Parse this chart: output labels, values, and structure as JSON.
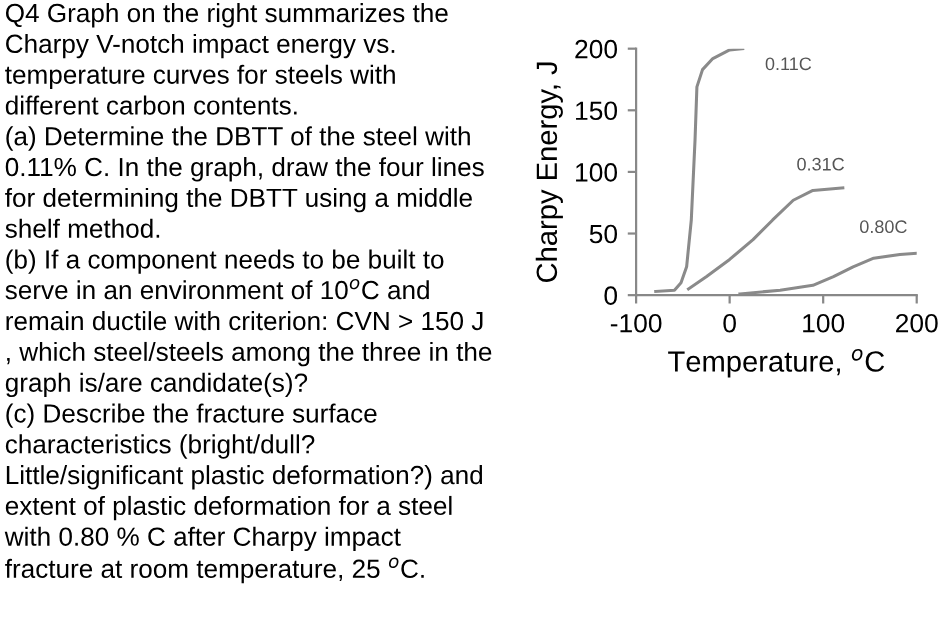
{
  "chart_data": {
    "type": "line",
    "xlabel": "Temperature, $^{o}$C",
    "ylabel": "Charpy Energy, J",
    "xlim": [
      -100,
      200
    ],
    "ylim": [
      0,
      200
    ],
    "xticks": [
      -100,
      0,
      100,
      200
    ],
    "yticks": [
      0,
      50,
      100,
      150,
      200
    ],
    "grid": false,
    "legend": false,
    "marker": "none",
    "line_style": "solid",
    "series": [
      {
        "name": "0.11C",
        "color": "#8a8a8a",
        "x": [
          -79,
          -59,
          -52,
          -46,
          -41,
          -37,
          -35,
          -29,
          -18,
          0,
          14
        ],
        "values": [
          3,
          4,
          10,
          23,
          61,
          126,
          169,
          183,
          192,
          199,
          200
        ]
      },
      {
        "name": "0.31C",
        "color": "#8a8a8a",
        "x": [
          -44,
          -25,
          0,
          25,
          46,
          68,
          89,
          121
        ],
        "values": [
          5,
          15,
          29,
          45,
          61,
          77,
          85,
          87
        ]
      },
      {
        "name": "0.80C",
        "color": "#8a8a8a",
        "x": [
          11,
          54,
          89,
          111,
          132,
          154,
          182,
          200
        ],
        "values": [
          1,
          4,
          8,
          15,
          23,
          30,
          33,
          34
        ]
      }
    ],
    "annotations": [
      "Q4 Graph on the right summarizes the",
      "Charpy V-notch impact energy vs.",
      "temperature curves for steels with",
      "different carbon contents.",
      "(a) Determine the DBTT of the steel with",
      "0.11% C. In the graph, draw the four lines",
      "for determining the DBTT using a middle",
      "shelf method.",
      "(b) If a component needs to be built to",
      "serve in an environment of 10$^{o}$C and",
      "remain ductile with criterion: CVN > 150 J",
      ", which steel/steels among the three in the",
      "graph is/are candidate(s)?",
      "(c) Describe the fracture surface",
      "characteristics (bright/dull?",
      "Little/significant plastic deformation?) and",
      "extent of plastic deformation for a steel",
      "with 0.80 % C after Charpy impact",
      "fracture at room temperature, 25 $^{o}$C."
    ]
  }
}
